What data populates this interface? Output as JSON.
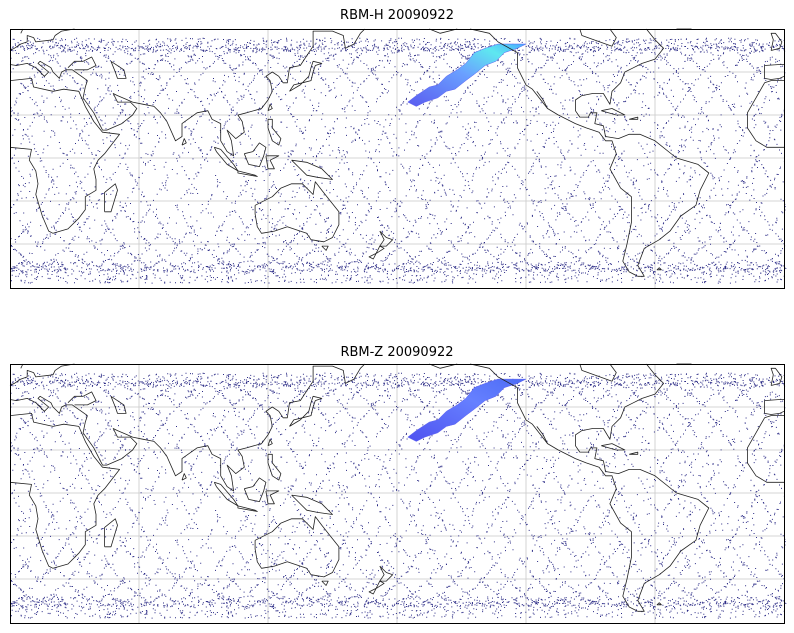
{
  "panels": [
    {
      "title": "RBM-H 20090922"
    },
    {
      "title": "RBM-Z 20090922"
    }
  ]
}
